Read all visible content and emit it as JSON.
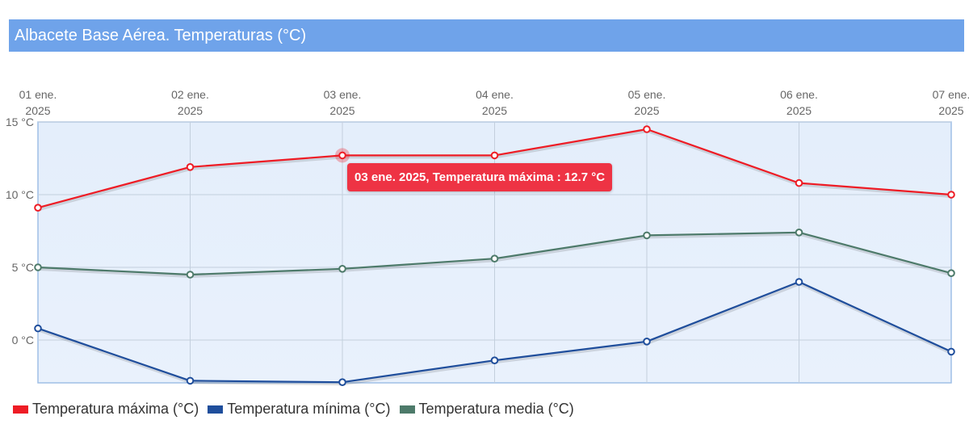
{
  "header": {
    "title": "Albacete Base Aérea. Temperaturas (°C)"
  },
  "chart_data": {
    "type": "line",
    "x": [
      "01 ene.|2025",
      "02 ene.|2025",
      "03 ene.|2025",
      "04 ene.|2025",
      "05 ene.|2025",
      "06 ene.|2025",
      "07 ene.|2025"
    ],
    "y_ticks": [
      {
        "value": 15,
        "label": "15 °C"
      },
      {
        "value": 10,
        "label": "10 °C"
      },
      {
        "value": 5,
        "label": "5 °C"
      },
      {
        "value": 0,
        "label": "0 °C"
      }
    ],
    "ylim": [
      -3,
      15
    ],
    "x_axis_position": "top",
    "grid": true,
    "legend_position": "bottom-left",
    "series": [
      {
        "name": "Temperatura máxima (°C)",
        "color": "#ee1c25",
        "values": [
          9.1,
          11.9,
          12.7,
          12.7,
          14.5,
          10.8,
          10.0
        ]
      },
      {
        "name": "Temperatura mínima (°C)",
        "color": "#1f4e9c",
        "values": [
          0.8,
          -2.8,
          -2.9,
          -1.4,
          -0.1,
          4.0,
          -0.8
        ]
      },
      {
        "name": "Temperatura media (°C)",
        "color": "#4d7a6a",
        "values": [
          5.0,
          4.5,
          4.9,
          5.6,
          7.2,
          7.4,
          4.6
        ]
      }
    ],
    "tooltip": {
      "text": "03 ene. 2025, Temperatura máxima : 12.7 °C",
      "series_index": 0,
      "point_index": 2,
      "color": "#ee3344"
    }
  }
}
